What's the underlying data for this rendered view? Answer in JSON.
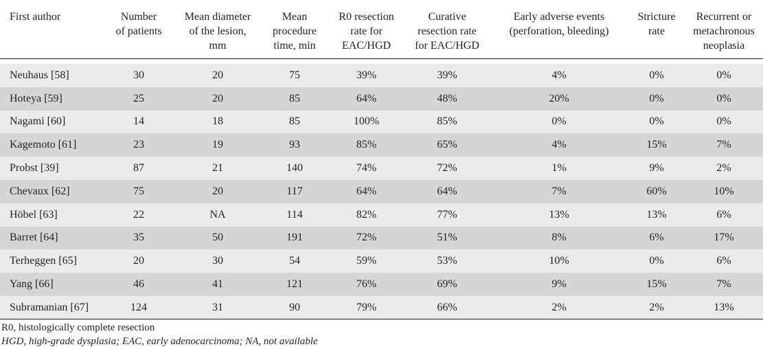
{
  "table": {
    "columns": [
      "First author",
      "Number of patients",
      "Mean diameter of the lesion, mm",
      "Mean procedure time, min",
      "R0 resection rate for EAC/HGD",
      "Curative resection rate for EAC/HGD",
      "Early adverse events (perforation, bleeding)",
      "Stricture rate",
      "Recurrent or metachronous neoplasia"
    ],
    "header_lines": [
      [
        "First author"
      ],
      [
        "Number",
        "of patients"
      ],
      [
        "Mean diameter",
        "of the lesion,",
        "mm"
      ],
      [
        "Mean",
        "procedure",
        "time, min"
      ],
      [
        "R0 resection",
        "rate for",
        "EAC/HGD"
      ],
      [
        "Curative",
        "resection rate",
        "for EAC/HGD"
      ],
      [
        "Early adverse events",
        "(perforation, bleeding)"
      ],
      [
        "Stricture",
        "rate"
      ],
      [
        "Recurrent or",
        "metachronous",
        "neoplasia"
      ]
    ],
    "rows": [
      [
        "Neuhaus [58]",
        "30",
        "20",
        "75",
        "39%",
        "39%",
        "4%",
        "0%",
        "0%"
      ],
      [
        "Hoteya [59]",
        "25",
        "20",
        "85",
        "64%",
        "48%",
        "20%",
        "0%",
        "0%"
      ],
      [
        "Nagami [60]",
        "14",
        "18",
        "85",
        "100%",
        "85%",
        "0%",
        "0%",
        "0%"
      ],
      [
        "Kagemoto [61]",
        "23",
        "19",
        "93",
        "85%",
        "65%",
        "4%",
        "15%",
        "7%"
      ],
      [
        "Probst [39]",
        "87",
        "21",
        "140",
        "74%",
        "72%",
        "1%",
        "9%",
        "2%"
      ],
      [
        "Chevaux [62]",
        "75",
        "20",
        "117",
        "64%",
        "64%",
        "7%",
        "60%",
        "10%"
      ],
      [
        "Höbel [63]",
        "22",
        "NA",
        "114",
        "82%",
        "77%",
        "13%",
        "13%",
        "6%"
      ],
      [
        "Barret [64]",
        "35",
        "50",
        "191",
        "72%",
        "51%",
        "8%",
        "6%",
        "17%"
      ],
      [
        "Terheggen [65]",
        "20",
        "30",
        "54",
        "59%",
        "53%",
        "10%",
        "0%",
        "6%"
      ],
      [
        "Yang [66]",
        "46",
        "41",
        "121",
        "76%",
        "69%",
        "9%",
        "15%",
        "7%"
      ],
      [
        "Subramanian [67]",
        "124",
        "31",
        "90",
        "79%",
        "66%",
        "2%",
        "2%",
        "13%"
      ]
    ]
  },
  "footnotes": {
    "r0": "R0, histologically complete resection",
    "abbreviations": "HGD, high-grade dysplasia; EAC, early adenocarcinoma; NA, not available"
  },
  "colors": {
    "row_light": "#ebebeb",
    "row_dark": "#d6d6d6",
    "rule": "#231f20"
  }
}
